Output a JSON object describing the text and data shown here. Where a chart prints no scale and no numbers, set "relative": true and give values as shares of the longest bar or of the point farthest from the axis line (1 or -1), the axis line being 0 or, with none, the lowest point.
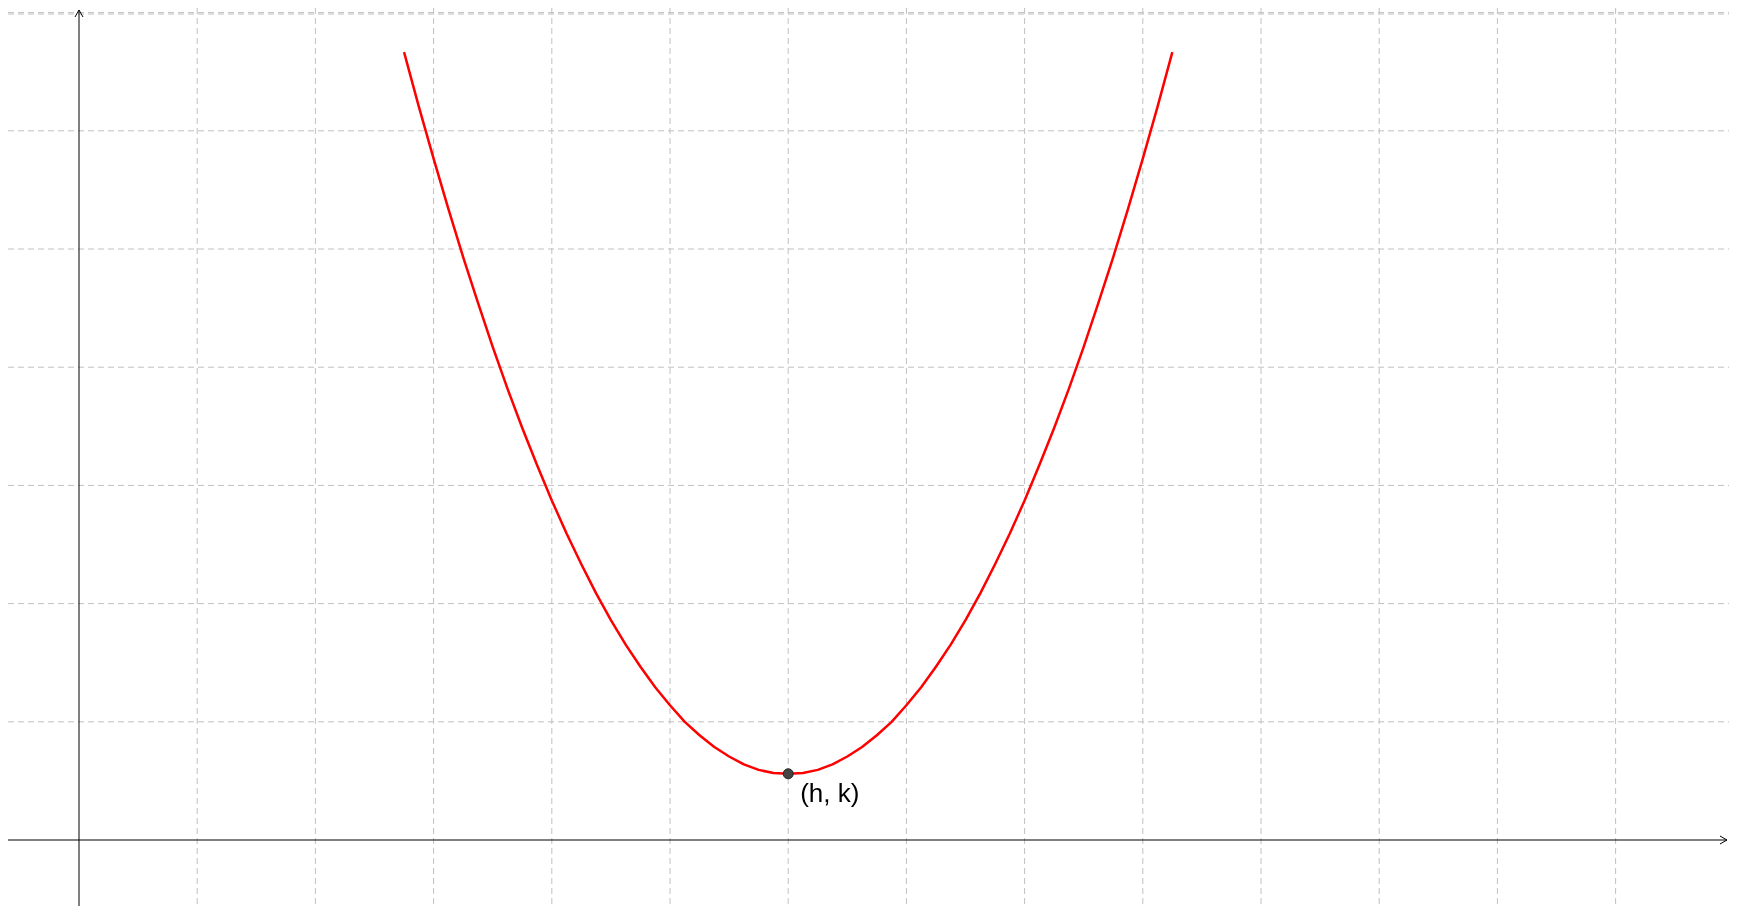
{
  "chart_data": {
    "type": "line",
    "relative": true,
    "grid": true,
    "marker": "none",
    "line_style": "solid",
    "categories": [
      null,
      null,
      null,
      null,
      null,
      null,
      null,
      null,
      null,
      null,
      null,
      null,
      null,
      null,
      null,
      null,
      null,
      null,
      null,
      null,
      null,
      null,
      null,
      null,
      null,
      null,
      null,
      null,
      null,
      null,
      null,
      null,
      null,
      null,
      null,
      null,
      null,
      null,
      null,
      null,
      null,
      null,
      null,
      null,
      null,
      null,
      null,
      null,
      null,
      null,
      null,
      null,
      null
    ],
    "series": [
      {
        "color": "#ff0000",
        "values": [
          1,
          0.931,
          0.865,
          0.801,
          0.74,
          0.682,
          0.626,
          0.573,
          0.523,
          0.476,
          0.431,
          0.389,
          0.35,
          0.313,
          0.279,
          0.248,
          0.22,
          0.194,
          0.171,
          0.15,
          0.133,
          0.118,
          0.106,
          0.096,
          0.089,
          0.085,
          0.084,
          0.085,
          0.089,
          0.096,
          0.106,
          0.118,
          0.133,
          0.15,
          0.171,
          0.194,
          0.22,
          0.248,
          0.279,
          0.313,
          0.35,
          0.389,
          0.431,
          0.476,
          0.523,
          0.573,
          0.626,
          0.682,
          0.74,
          0.801,
          0.865,
          0.931,
          1
        ]
      }
    ],
    "annotations": [
      "(h, k)"
    ]
  }
}
